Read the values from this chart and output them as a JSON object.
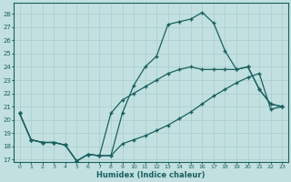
{
  "xlabel": "Humidex (Indice chaleur)",
  "ylabel": "",
  "bg_color": "#c2e0e0",
  "grid_color": "#a8cccc",
  "line_color": "#1a6060",
  "ylim": [
    16.8,
    28.8
  ],
  "xlim": [
    -0.5,
    23.5
  ],
  "yticks": [
    17,
    18,
    19,
    20,
    21,
    22,
    23,
    24,
    25,
    26,
    27,
    28
  ],
  "xticks": [
    0,
    1,
    2,
    3,
    4,
    5,
    6,
    7,
    8,
    9,
    10,
    11,
    12,
    13,
    14,
    15,
    16,
    17,
    18,
    19,
    20,
    21,
    22,
    23
  ],
  "line1": [
    20.5,
    18.5,
    18.3,
    18.3,
    18.1,
    16.9,
    17.4,
    17.3,
    17.3,
    20.5,
    22.6,
    24.0,
    24.8,
    27.2,
    27.4,
    27.6,
    28.1,
    27.3,
    25.2,
    23.8,
    24.0,
    22.3,
    21.2,
    21.0
  ],
  "line2": [
    20.5,
    18.5,
    18.3,
    18.3,
    18.1,
    16.9,
    17.4,
    17.3,
    20.5,
    21.5,
    22.0,
    22.5,
    23.0,
    23.5,
    23.8,
    24.0,
    23.8,
    23.8,
    23.8,
    23.8,
    24.0,
    22.3,
    21.2,
    21.0
  ],
  "line3": [
    20.5,
    18.5,
    18.3,
    18.3,
    18.1,
    16.9,
    17.4,
    17.3,
    17.3,
    18.2,
    18.5,
    18.8,
    19.2,
    19.6,
    20.1,
    20.6,
    21.2,
    21.8,
    22.3,
    22.8,
    23.2,
    23.5,
    20.8,
    21.0
  ]
}
